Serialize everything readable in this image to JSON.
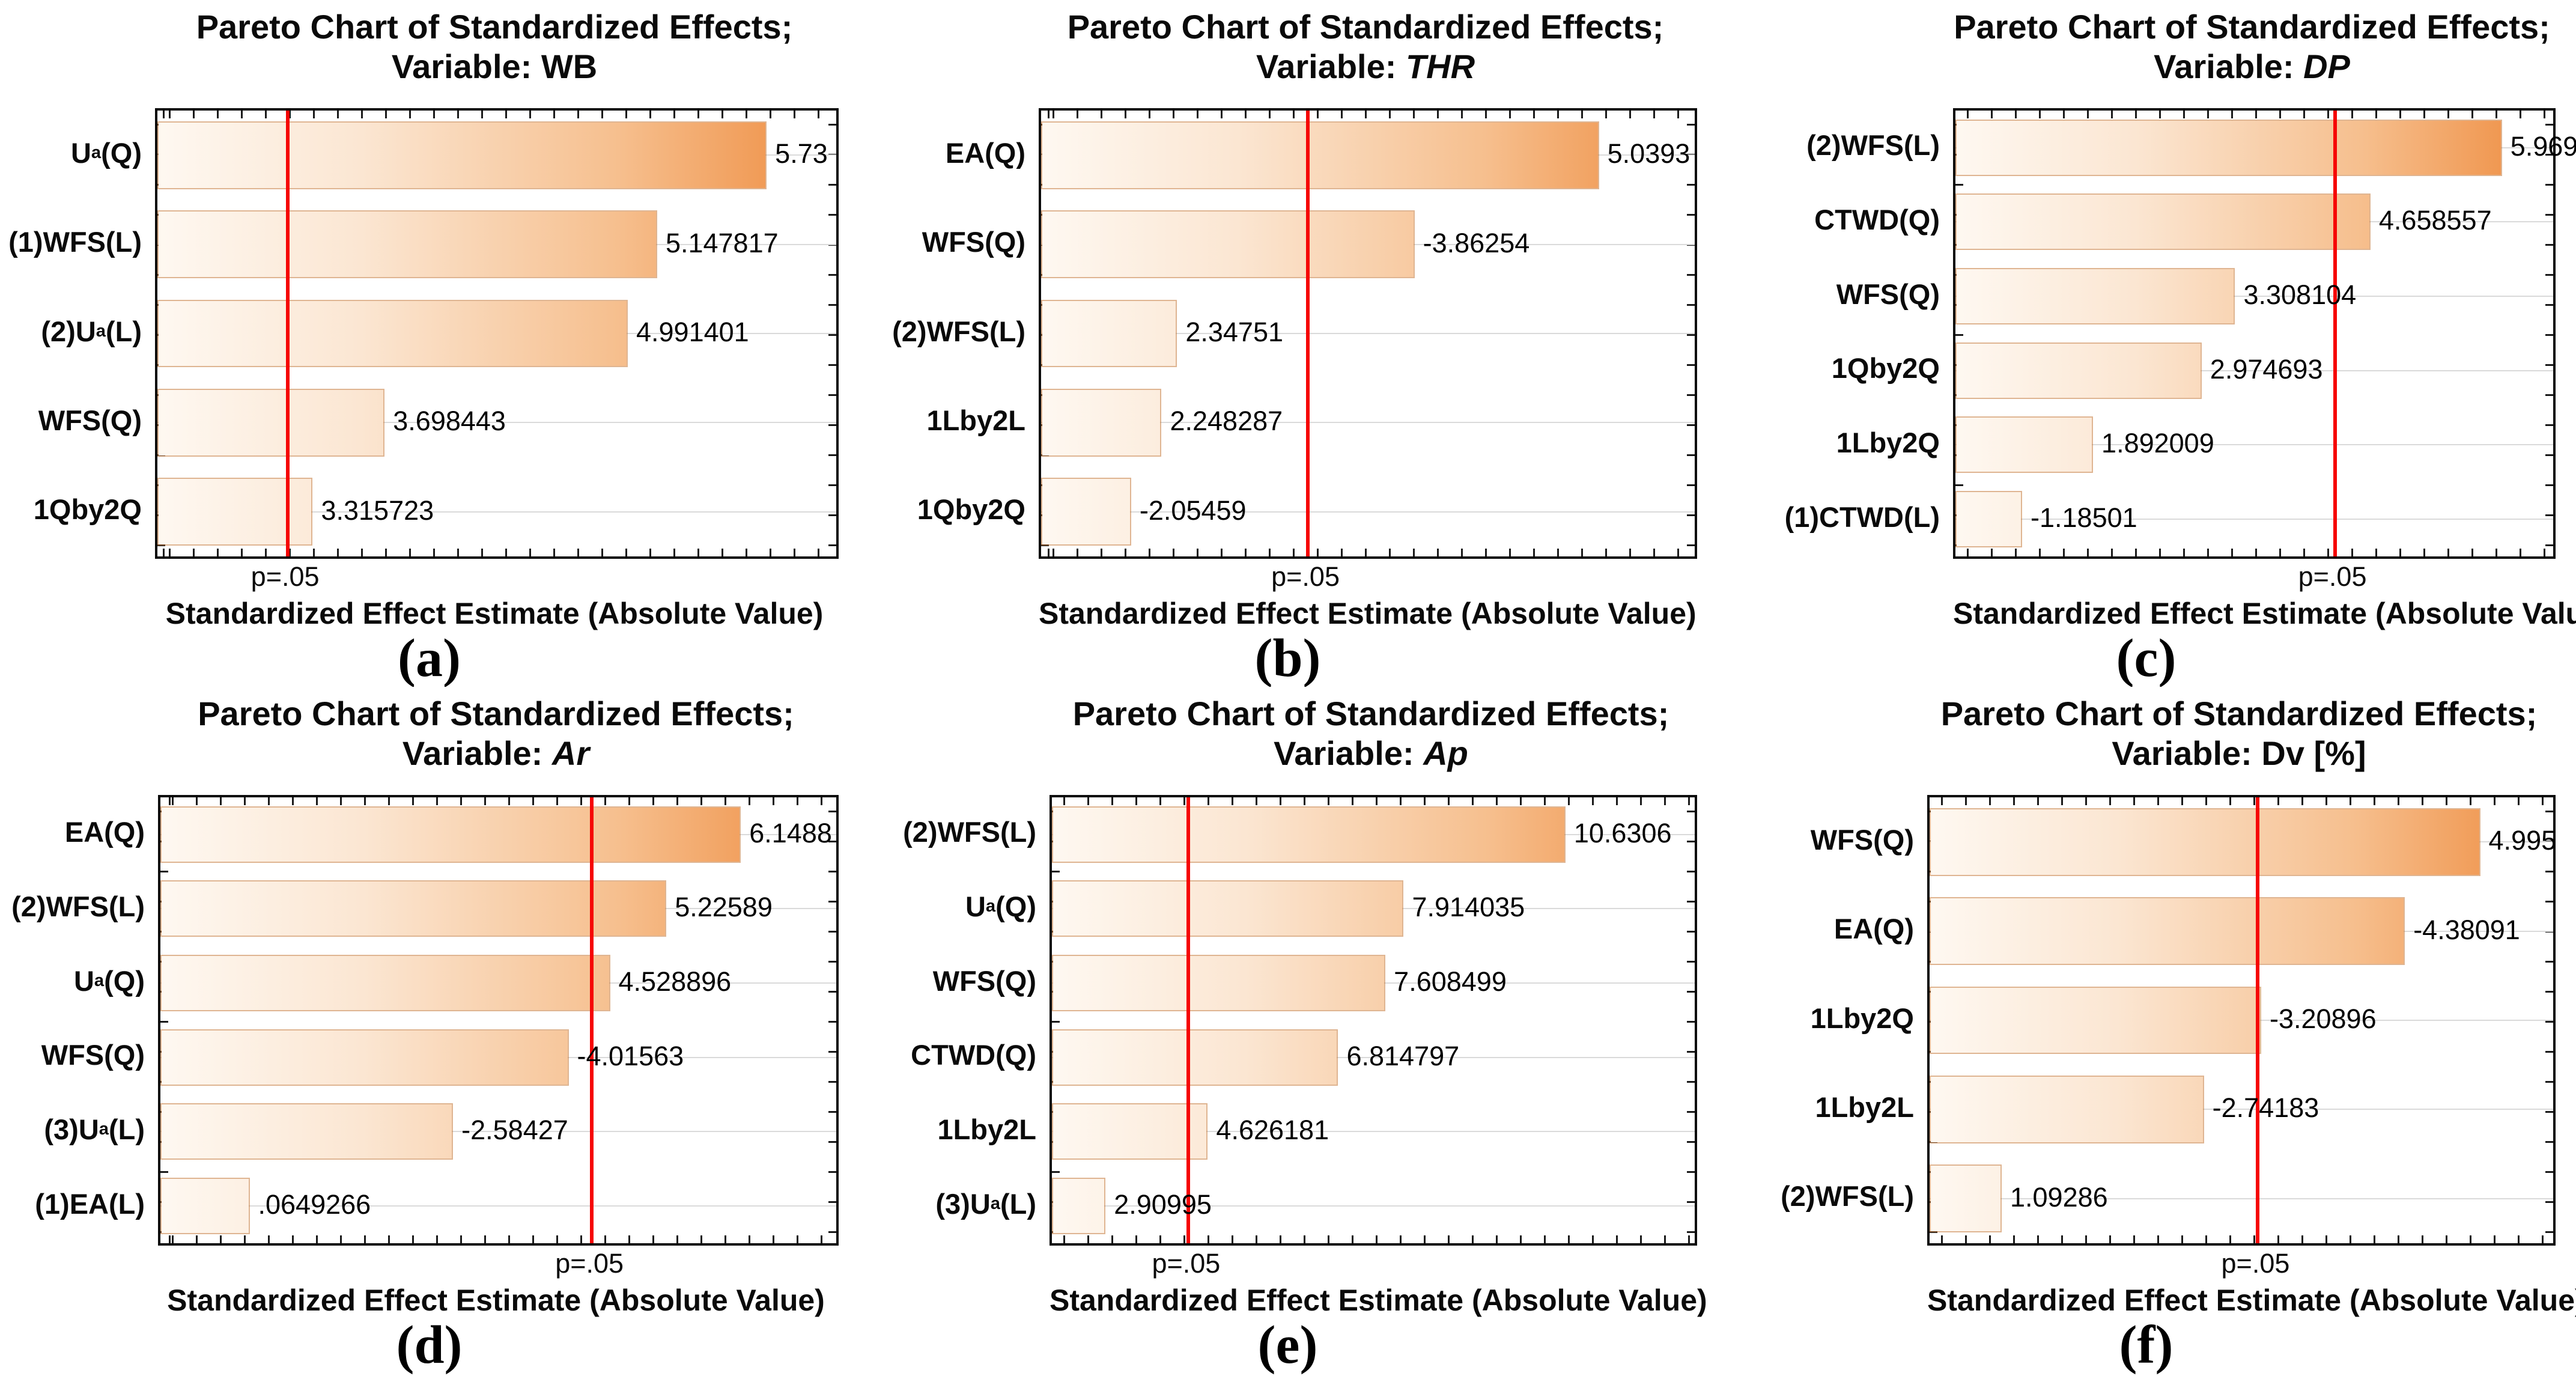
{
  "page": {
    "background": "#ffffff"
  },
  "shared": {
    "title_line1": "Pareto Chart of Standardized Effects;",
    "title_line2_prefix": "Variable: ",
    "xlabel": "Standardized Effect Estimate (Absolute Value)",
    "p_label": "p=.05"
  },
  "colors": {
    "bar_gradient_start": "#fef8f1",
    "bar_gradient_end": "#ee8a3c",
    "bar_border": "#c47838",
    "significance_line": "#f60505",
    "gridline": "#dadada",
    "frame": "#0a0a0a",
    "text": "#000000"
  },
  "chart_data": [
    {
      "type": "bar",
      "id": "a",
      "caption": "(a)",
      "variable": "WB",
      "variable_italic": false,
      "orientation": "horizontal-pareto",
      "categories": [
        "U~a~(Q)",
        "(1)WFS(L)",
        "(2)U~a~(L)",
        "WFS(Q)",
        "1Qby2Q"
      ],
      "values": [
        5.73,
        5.147817,
        4.991401,
        3.698443,
        3.315723
      ],
      "value_labels": [
        "5.73",
        "5.147817",
        "4.991401",
        "3.698443",
        "3.315723"
      ],
      "xlim": [
        2.49,
        6.1
      ],
      "red_line_x": 3.182,
      "red_line_label": "p=.05",
      "grid": true,
      "plot_left": 258
    },
    {
      "type": "bar",
      "id": "b",
      "caption": "(b)",
      "variable": "THR",
      "variable_italic": true,
      "orientation": "horizontal-pareto",
      "categories": [
        "EA(Q)",
        "WFS(Q)",
        "(2)WFS(L)",
        "1Lby2L",
        "1Qby2Q"
      ],
      "values": [
        5.0393,
        3.86254,
        2.34751,
        2.248287,
        2.05459
      ],
      "value_labels": [
        "5.0393",
        "-3.86254",
        "2.34751",
        "2.248287",
        "-2.05459"
      ],
      "xlim": [
        1.48,
        5.65
      ],
      "red_line_x": 3.182,
      "red_line_label": "p=.05",
      "grid": true,
      "plot_left": 300
    },
    {
      "type": "bar",
      "id": "c",
      "caption": "(c)",
      "variable": "DP",
      "variable_italic": true,
      "orientation": "horizontal-pareto",
      "categories": [
        "(2)WFS(L)",
        "CTWD(Q)",
        "WFS(Q)",
        "1Qby2Q",
        "1Lby2Q",
        "(1)CTWD(L)"
      ],
      "values": [
        5.969,
        4.658557,
        3.308104,
        2.974693,
        1.892009,
        1.18501
      ],
      "value_labels": [
        "5.969",
        "4.658557",
        "3.308104",
        "2.974693",
        "1.892009",
        "-1.18501"
      ],
      "xlim": [
        0.52,
        6.48
      ],
      "red_line_x": 4.303,
      "red_line_label": "p=.05",
      "grid": true,
      "plot_left": 393
    },
    {
      "type": "bar",
      "id": "d",
      "caption": "(d)",
      "variable": "Ar",
      "variable_italic": true,
      "orientation": "horizontal-pareto",
      "categories": [
        "EA(Q)",
        "(2)WFS(L)",
        "U~a~(Q)",
        "WFS(Q)",
        "(3)U~a~(L)",
        "(1)EA(L)"
      ],
      "values": [
        6.1488,
        5.22589,
        4.528896,
        4.01563,
        2.58427,
        0.0649266
      ],
      "value_labels": [
        "6.1488",
        "5.22589",
        "4.528896",
        "-4.01563",
        "-2.58427",
        ".0649266"
      ],
      "xlim": [
        -1.04,
        7.33
      ],
      "red_line_x": 4.303,
      "red_line_label": "p=.05",
      "grid": true,
      "plot_left": 263
    },
    {
      "type": "bar",
      "id": "e",
      "caption": "(e)",
      "variable": "Ap",
      "variable_italic": true,
      "orientation": "horizontal-pareto",
      "categories": [
        "(2)WFS(L)",
        "U~a~(Q)",
        "WFS(Q)",
        "CTWD(Q)",
        "1Lby2L",
        "(3)U~a~(L)"
      ],
      "values": [
        10.6306,
        7.914035,
        7.608499,
        6.814797,
        4.626181,
        2.90995
      ],
      "value_labels": [
        "10.6306",
        "7.914035",
        "7.608499",
        "6.814797",
        "4.626181",
        "2.90995"
      ],
      "xlim": [
        2.01,
        12.8
      ],
      "red_line_x": 4.303,
      "red_line_label": "p=.05",
      "grid": true,
      "plot_left": 318
    },
    {
      "type": "bar",
      "id": "f",
      "caption": "(f)",
      "variable": "Dv [%]",
      "variable_italic": false,
      "orientation": "horizontal-pareto",
      "categories": [
        "WFS(Q)",
        "EA(Q)",
        "1Lby2Q",
        "1Lby2L",
        "(2)WFS(L)"
      ],
      "values": [
        4.995,
        4.38091,
        3.20896,
        2.74183,
        1.09286
      ],
      "value_labels": [
        "4.995",
        "-4.38091",
        "-3.20896",
        "-2.74183",
        "1.09286"
      ],
      "xlim": [
        0.505,
        5.59
      ],
      "red_line_x": 3.182,
      "red_line_label": "p=.05",
      "grid": true,
      "plot_left": 350
    }
  ]
}
